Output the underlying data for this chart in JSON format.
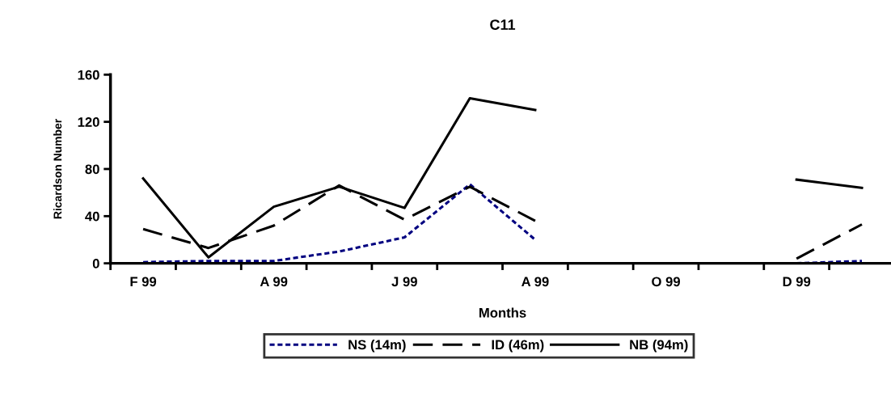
{
  "chart_data": {
    "type": "line",
    "title": "C11",
    "xlabel": "Months",
    "ylabel": "Ricardson Number",
    "categories": [
      "F 99",
      null,
      "A 99",
      null,
      "J 99",
      null,
      "A 99",
      null,
      "O 99",
      null,
      "D 99",
      null
    ],
    "ylim": [
      0,
      160
    ],
    "yticks": [
      0,
      40,
      80,
      120,
      160
    ],
    "grid": false,
    "legend": "bottom",
    "marker": "none",
    "series": [
      {
        "name": "NS (14m)",
        "color": "#000080",
        "line_style": "dotted",
        "values": [
          1,
          2,
          2,
          10,
          22,
          67,
          20,
          null,
          null,
          null,
          0,
          2
        ]
      },
      {
        "name": "ID (46m)",
        "color": "#000000",
        "line_style": "dashed",
        "values": [
          29,
          13,
          32,
          66,
          37,
          65,
          36,
          null,
          null,
          null,
          4,
          33
        ]
      },
      {
        "name": "NB (94m)",
        "color": "#000000",
        "line_style": "solid",
        "values": [
          72,
          5,
          48,
          65,
          47,
          140,
          130,
          null,
          null,
          null,
          71,
          64
        ]
      }
    ]
  }
}
